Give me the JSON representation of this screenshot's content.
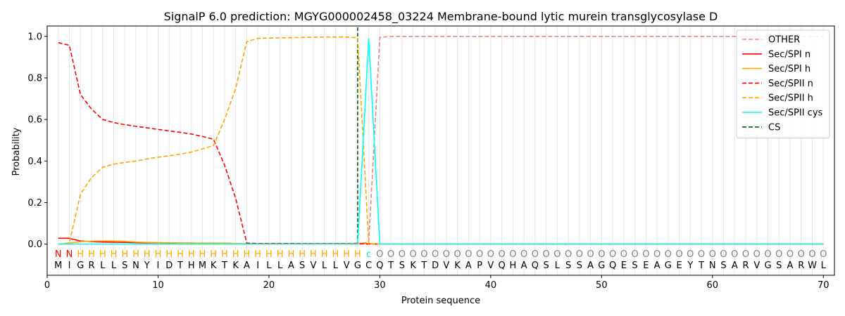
{
  "chart_data": {
    "type": "line",
    "title": "SignalP 6.0 prediction: MGYG000002458_03224 Membrane-bound lytic murein transglycosylase D",
    "xlabel": "Protein sequence",
    "ylabel": "Probability",
    "xlim": [
      0,
      71
    ],
    "ylim": [
      -0.15,
      1.05
    ],
    "x_ticks": [
      0,
      10,
      20,
      30,
      40,
      50,
      60,
      70
    ],
    "y_ticks": [
      0.0,
      0.2,
      0.4,
      0.6,
      0.8,
      1.0
    ],
    "x_tick_labels": [
      "0",
      "10",
      "20",
      "30",
      "40",
      "50",
      "60",
      "70"
    ],
    "y_tick_labels": [
      "0.0",
      "0.2",
      "0.4",
      "0.6",
      "0.8",
      "1.0"
    ],
    "grid": "vertical lines at each residue position",
    "legend_position": "top-right",
    "sequence": [
      "M",
      "I",
      "G",
      "R",
      "L",
      "L",
      "S",
      "N",
      "Y",
      "I",
      "D",
      "T",
      "H",
      "M",
      "K",
      "T",
      "K",
      "A",
      "I",
      "L",
      "L",
      "A",
      "S",
      "V",
      "L",
      "L",
      "V",
      "G",
      "C",
      "Q",
      "T",
      "S",
      "K",
      "T",
      "D",
      "V",
      "K",
      "A",
      "P",
      "V",
      "Q",
      "H",
      "A",
      "Q",
      "S",
      "L",
      "S",
      "S",
      "A",
      "G",
      "Q",
      "E",
      "S",
      "E",
      "A",
      "G",
      "E",
      "Y",
      "T",
      "N",
      "S",
      "A",
      "R",
      "V",
      "G",
      "S",
      "A",
      "R",
      "W",
      "L"
    ],
    "annotations": [
      "N",
      "N",
      "H",
      "H",
      "H",
      "H",
      "H",
      "H",
      "H",
      "H",
      "H",
      "H",
      "H",
      "H",
      "H",
      "H",
      "H",
      "H",
      "H",
      "H",
      "H",
      "H",
      "H",
      "H",
      "H",
      "H",
      "H",
      "H",
      "c",
      "O",
      "O",
      "O",
      "O",
      "O",
      "O",
      "O",
      "O",
      "O",
      "O",
      "O",
      "O",
      "O",
      "O",
      "O",
      "O",
      "O",
      "O",
      "O",
      "O",
      "O",
      "O",
      "O",
      "O",
      "O",
      "O",
      "O",
      "O",
      "O",
      "O",
      "O",
      "O",
      "O",
      "O",
      "O",
      "O",
      "O",
      "O",
      "O",
      "O",
      "O"
    ],
    "annotation_colors": {
      "N": "#ff0000",
      "H": "#ffa500",
      "c": "#00e5e5",
      "O": "#808080"
    },
    "cleavage_site": 28,
    "series": [
      {
        "name": "OTHER",
        "color": "#f08080",
        "dash": "dashed",
        "values": [
          0.0,
          0.0,
          0.0,
          0.0,
          0.0,
          0.0,
          0.0,
          0.0,
          0.0,
          0.0,
          0.0,
          0.0,
          0.0,
          0.0,
          0.0,
          0.0,
          0.0,
          0.0,
          0.0,
          0.0,
          0.0,
          0.0,
          0.0,
          0.0,
          0.0,
          0.0,
          0.0,
          0.0,
          0.01,
          0.995,
          1,
          1,
          1,
          1,
          1,
          1,
          1,
          1,
          1,
          1,
          1,
          1,
          1,
          1,
          1,
          1,
          1,
          1,
          1,
          1,
          1,
          1,
          1,
          1,
          1,
          1,
          1,
          1,
          1,
          1,
          1,
          1,
          1,
          1,
          1,
          1,
          1,
          1,
          1,
          1
        ]
      },
      {
        "name": "Sec/SPI n",
        "color": "#ff0000",
        "dash": "solid",
        "values": [
          0.028,
          0.028,
          0.015,
          0.012,
          0.01,
          0.009,
          0.008,
          0.007,
          0.006,
          0.006,
          0.005,
          0.005,
          0.005,
          0.004,
          0.004,
          0.004,
          0.003,
          0.003,
          0.002,
          0.002,
          0.002,
          0.002,
          0.002,
          0.002,
          0.002,
          0.002,
          0.002,
          0.004,
          0.002,
          0.0,
          0,
          0,
          0,
          0,
          0,
          0,
          0,
          0,
          0,
          0,
          0,
          0,
          0,
          0,
          0,
          0,
          0,
          0,
          0,
          0,
          0,
          0,
          0,
          0,
          0,
          0,
          0,
          0,
          0,
          0,
          0,
          0,
          0,
          0,
          0,
          0,
          0,
          0,
          0,
          0
        ]
      },
      {
        "name": "Sec/SPI h",
        "color": "#ffa500",
        "dash": "solid",
        "values": [
          0.0,
          0.005,
          0.012,
          0.014,
          0.015,
          0.015,
          0.013,
          0.01,
          0.008,
          0.007,
          0.006,
          0.005,
          0.005,
          0.004,
          0.004,
          0.004,
          0.003,
          0.003,
          0.003,
          0.003,
          0.003,
          0.003,
          0.003,
          0.003,
          0.003,
          0.003,
          0.003,
          0.003,
          0.002,
          0.0,
          0,
          0,
          0,
          0,
          0,
          0,
          0,
          0,
          0,
          0,
          0,
          0,
          0,
          0,
          0,
          0,
          0,
          0,
          0,
          0,
          0,
          0,
          0,
          0,
          0,
          0,
          0,
          0,
          0,
          0,
          0,
          0,
          0,
          0,
          0,
          0,
          0,
          0,
          0,
          0
        ]
      },
      {
        "name": "Sec/SPII n",
        "color": "#ff0000",
        "dash": "dashed",
        "values": [
          0.97,
          0.957,
          0.72,
          0.65,
          0.6,
          0.585,
          0.575,
          0.567,
          0.56,
          0.552,
          0.545,
          0.538,
          0.53,
          0.518,
          0.505,
          0.38,
          0.22,
          0.005,
          0.003,
          0.003,
          0.003,
          0.003,
          0.002,
          0.002,
          0.002,
          0.002,
          0.002,
          0.002,
          0.0,
          0.0,
          0,
          0,
          0,
          0,
          0,
          0,
          0,
          0,
          0,
          0,
          0,
          0,
          0,
          0,
          0,
          0,
          0,
          0,
          0,
          0,
          0,
          0,
          0,
          0,
          0,
          0,
          0,
          0,
          0,
          0,
          0,
          0,
          0,
          0,
          0,
          0,
          0,
          0,
          0,
          0
        ]
      },
      {
        "name": "Sec/SPII h",
        "color": "#ffa500",
        "dash": "dashed",
        "values": [
          0.0,
          0.005,
          0.24,
          0.32,
          0.37,
          0.385,
          0.393,
          0.4,
          0.41,
          0.418,
          0.425,
          0.433,
          0.443,
          0.458,
          0.475,
          0.6,
          0.75,
          0.975,
          0.99,
          0.992,
          0.993,
          0.994,
          0.995,
          0.996,
          0.997,
          0.997,
          0.997,
          0.993,
          0.0,
          0.0,
          0,
          0,
          0,
          0,
          0,
          0,
          0,
          0,
          0,
          0,
          0,
          0,
          0,
          0,
          0,
          0,
          0,
          0,
          0,
          0,
          0,
          0,
          0,
          0,
          0,
          0,
          0,
          0,
          0,
          0,
          0,
          0,
          0,
          0,
          0,
          0,
          0,
          0,
          0,
          0
        ]
      },
      {
        "name": "Sec/SPII cys",
        "color": "#00ffff",
        "dash": "solid",
        "values": [
          0.0,
          0.0,
          0.0,
          0.0,
          0.0,
          0.0,
          0.0,
          0.0,
          0.0,
          0.0,
          0.0,
          0.0,
          0.0,
          0.0,
          0.0,
          0.0,
          0.0,
          0.0,
          0.0,
          0.0,
          0.0,
          0.0,
          0.0,
          0.0,
          0.0,
          0.0,
          0.0,
          0.0,
          0.99,
          0.0,
          0,
          0,
          0,
          0,
          0,
          0,
          0,
          0,
          0,
          0,
          0,
          0,
          0,
          0,
          0,
          0,
          0,
          0,
          0,
          0,
          0,
          0,
          0,
          0,
          0,
          0,
          0,
          0,
          0,
          0,
          0,
          0,
          0,
          0,
          0,
          0,
          0,
          0,
          0,
          0
        ]
      },
      {
        "name": "CS",
        "color": "#006400",
        "dash": "dashed",
        "values": []
      }
    ]
  }
}
